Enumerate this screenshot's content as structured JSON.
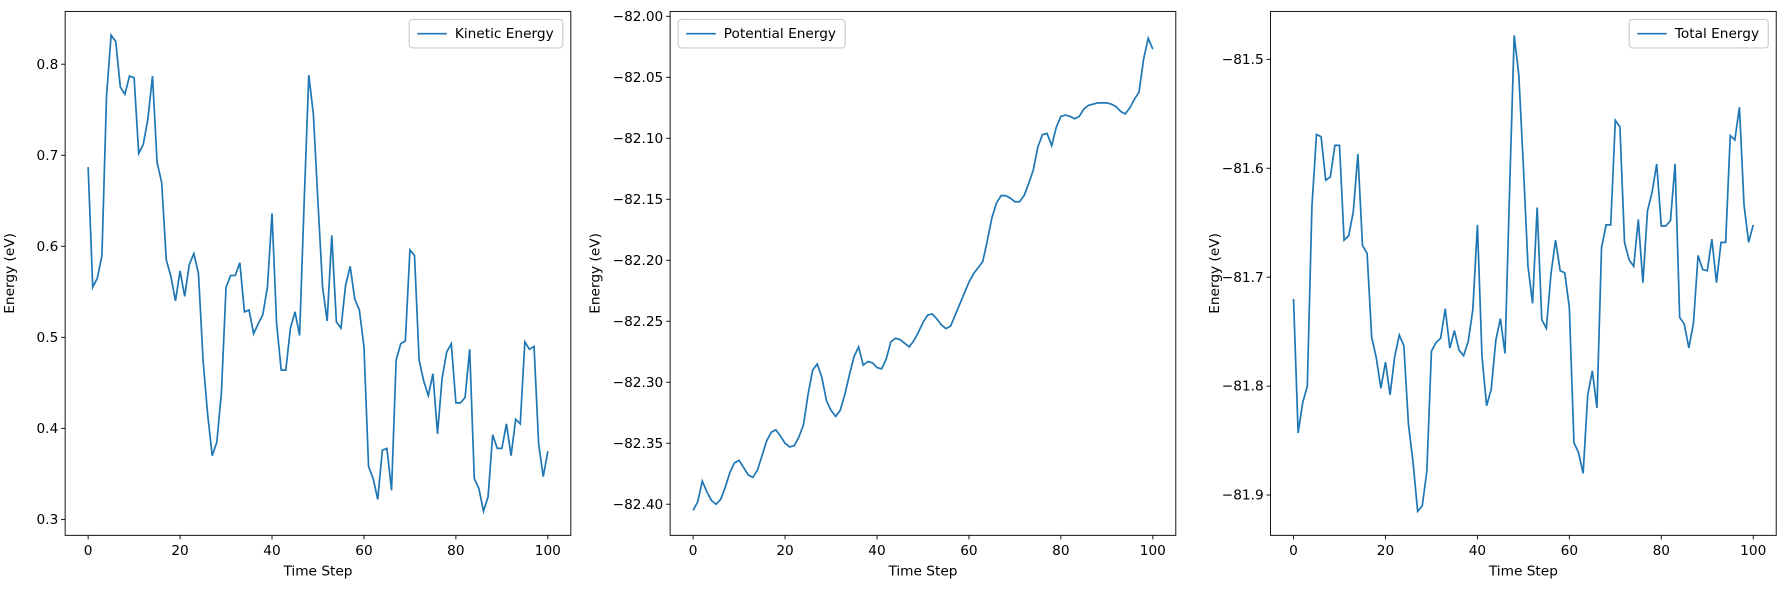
{
  "chart_data": [
    {
      "type": "line",
      "xlabel": "Time Step",
      "ylabel": "Energy (eV)",
      "legend": "upper right",
      "xlim": [
        -5,
        105
      ],
      "ylim": [
        0.2825,
        0.858
      ],
      "xticks": [
        0,
        20,
        40,
        60,
        80,
        100
      ],
      "yticks": [
        0.3,
        0.4,
        0.5,
        0.6,
        0.7,
        0.8
      ],
      "x": [
        0,
        1,
        2,
        3,
        4,
        5,
        6,
        7,
        8,
        9,
        10,
        11,
        12,
        13,
        14,
        15,
        16,
        17,
        18,
        19,
        20,
        21,
        22,
        23,
        24,
        25,
        26,
        27,
        28,
        29,
        30,
        31,
        32,
        33,
        34,
        35,
        36,
        37,
        38,
        39,
        40,
        41,
        42,
        43,
        44,
        45,
        46,
        47,
        48,
        49,
        50,
        51,
        52,
        53,
        54,
        55,
        56,
        57,
        58,
        59,
        60,
        61,
        62,
        63,
        64,
        65,
        66,
        67,
        68,
        69,
        70,
        71,
        72,
        73,
        74,
        75,
        76,
        77,
        78,
        79,
        80,
        81,
        82,
        83,
        84,
        85,
        86,
        87,
        88,
        89,
        90,
        91,
        92,
        93,
        94,
        95,
        96,
        97,
        98,
        99,
        100
      ],
      "series": [
        {
          "name": "Kinetic Energy",
          "color": "#1f77b4",
          "values": [
            0.687,
            0.555,
            0.565,
            0.59,
            0.765,
            0.832,
            0.825,
            0.775,
            0.767,
            0.787,
            0.785,
            0.702,
            0.712,
            0.74,
            0.787,
            0.692,
            0.67,
            0.585,
            0.567,
            0.54,
            0.573,
            0.545,
            0.58,
            0.592,
            0.57,
            0.475,
            0.415,
            0.37,
            0.385,
            0.44,
            0.555,
            0.568,
            0.568,
            0.582,
            0.528,
            0.53,
            0.504,
            0.515,
            0.525,
            0.555,
            0.636,
            0.515,
            0.464,
            0.464,
            0.51,
            0.528,
            0.502,
            0.65,
            0.788,
            0.745,
            0.648,
            0.555,
            0.518,
            0.612,
            0.517,
            0.51,
            0.557,
            0.578,
            0.542,
            0.53,
            0.49,
            0.358,
            0.345,
            0.322,
            0.376,
            0.378,
            0.332,
            0.475,
            0.493,
            0.496,
            0.596,
            0.59,
            0.475,
            0.452,
            0.436,
            0.46,
            0.394,
            0.455,
            0.484,
            0.493,
            0.428,
            0.428,
            0.434,
            0.487,
            0.345,
            0.334,
            0.309,
            0.325,
            0.393,
            0.378,
            0.378,
            0.405,
            0.37,
            0.41,
            0.405,
            0.495,
            0.487,
            0.49,
            0.383,
            0.347,
            0.375
          ]
        }
      ]
    },
    {
      "type": "line",
      "xlabel": "Time Step",
      "ylabel": "Energy (eV)",
      "legend": "upper left",
      "xlim": [
        -5,
        105
      ],
      "ylim": [
        -82.4255,
        -81.996
      ],
      "xticks": [
        0,
        20,
        40,
        60,
        80,
        100
      ],
      "yticks": [
        {
          "value": -82.4,
          "label": "−82.40"
        },
        {
          "value": -82.35,
          "label": "−82.35"
        },
        {
          "value": -82.3,
          "label": "−82.30"
        },
        {
          "value": -82.25,
          "label": "−82.25"
        },
        {
          "value": -82.2,
          "label": "−82.20"
        },
        {
          "value": -82.15,
          "label": "−82.15"
        },
        {
          "value": -82.1,
          "label": "−82.10"
        },
        {
          "value": -82.05,
          "label": "−82.05"
        },
        {
          "value": -82.0,
          "label": "−82.00"
        }
      ],
      "x": [
        0,
        1,
        2,
        3,
        4,
        5,
        6,
        7,
        8,
        9,
        10,
        11,
        12,
        13,
        14,
        15,
        16,
        17,
        18,
        19,
        20,
        21,
        22,
        23,
        24,
        25,
        26,
        27,
        28,
        29,
        30,
        31,
        32,
        33,
        34,
        35,
        36,
        37,
        38,
        39,
        40,
        41,
        42,
        43,
        44,
        45,
        46,
        47,
        48,
        49,
        50,
        51,
        52,
        53,
        54,
        55,
        56,
        57,
        58,
        59,
        60,
        61,
        62,
        63,
        64,
        65,
        66,
        67,
        68,
        69,
        70,
        71,
        72,
        73,
        74,
        75,
        76,
        77,
        78,
        79,
        80,
        81,
        82,
        83,
        84,
        85,
        86,
        87,
        88,
        89,
        90,
        91,
        92,
        93,
        94,
        95,
        96,
        97,
        98,
        99,
        100
      ],
      "series": [
        {
          "name": "Potential Energy",
          "color": "#1f77b4",
          "values": [
            -82.405,
            -82.398,
            -82.381,
            -82.39,
            -82.397,
            -82.4,
            -82.396,
            -82.386,
            -82.374,
            -82.366,
            -82.364,
            -82.37,
            -82.376,
            -82.378,
            -82.372,
            -82.36,
            -82.348,
            -82.341,
            -82.339,
            -82.344,
            -82.35,
            -82.353,
            -82.352,
            -82.345,
            -82.335,
            -82.31,
            -82.29,
            -82.285,
            -82.296,
            -82.315,
            -82.323,
            -82.328,
            -82.323,
            -82.31,
            -82.294,
            -82.279,
            -82.271,
            -82.286,
            -82.283,
            -82.284,
            -82.288,
            -82.289,
            -82.281,
            -82.267,
            -82.264,
            -82.265,
            -82.268,
            -82.271,
            -82.266,
            -82.259,
            -82.251,
            -82.245,
            -82.244,
            -82.248,
            -82.253,
            -82.256,
            -82.254,
            -82.245,
            -82.236,
            -82.227,
            -82.218,
            -82.211,
            -82.206,
            -82.201,
            -82.184,
            -82.165,
            -82.153,
            -82.147,
            -82.147,
            -82.149,
            -82.152,
            -82.152,
            -82.147,
            -82.137,
            -82.126,
            -82.107,
            -82.097,
            -82.096,
            -82.106,
            -82.091,
            -82.082,
            -82.081,
            -82.082,
            -82.084,
            -82.082,
            -82.076,
            -82.073,
            -82.072,
            -82.071,
            -82.071,
            -82.071,
            -82.072,
            -82.074,
            -82.078,
            -82.08,
            -82.075,
            -82.068,
            -82.062,
            -82.035,
            -82.018,
            -82.027
          ]
        }
      ]
    },
    {
      "type": "line",
      "xlabel": "Time Step",
      "ylabel": "Energy (eV)",
      "legend": "upper right",
      "xlim": [
        -5,
        105
      ],
      "ylim": [
        -81.937,
        -81.456
      ],
      "xticks": [
        0,
        20,
        40,
        60,
        80,
        100
      ],
      "yticks": [
        {
          "value": -81.9,
          "label": "−81.9"
        },
        {
          "value": -81.8,
          "label": "−81.8"
        },
        {
          "value": -81.7,
          "label": "−81.7"
        },
        {
          "value": -81.6,
          "label": "−81.6"
        },
        {
          "value": -81.5,
          "label": "−81.5"
        }
      ],
      "x": [
        0,
        1,
        2,
        3,
        4,
        5,
        6,
        7,
        8,
        9,
        10,
        11,
        12,
        13,
        14,
        15,
        16,
        17,
        18,
        19,
        20,
        21,
        22,
        23,
        24,
        25,
        26,
        27,
        28,
        29,
        30,
        31,
        32,
        33,
        34,
        35,
        36,
        37,
        38,
        39,
        40,
        41,
        42,
        43,
        44,
        45,
        46,
        47,
        48,
        49,
        50,
        51,
        52,
        53,
        54,
        55,
        56,
        57,
        58,
        59,
        60,
        61,
        62,
        63,
        64,
        65,
        66,
        67,
        68,
        69,
        70,
        71,
        72,
        73,
        74,
        75,
        76,
        77,
        78,
        79,
        80,
        81,
        82,
        83,
        84,
        85,
        86,
        87,
        88,
        89,
        90,
        91,
        92,
        93,
        94,
        95,
        96,
        97,
        98,
        99,
        100
      ],
      "series": [
        {
          "name": "Total Energy",
          "color": "#1f77b4",
          "values": [
            -81.72,
            -81.843,
            -81.815,
            -81.8,
            -81.635,
            -81.569,
            -81.571,
            -81.611,
            -81.608,
            -81.579,
            -81.579,
            -81.666,
            -81.662,
            -81.64,
            -81.587,
            -81.671,
            -81.678,
            -81.755,
            -81.774,
            -81.802,
            -81.778,
            -81.808,
            -81.773,
            -81.753,
            -81.763,
            -81.835,
            -81.87,
            -81.915,
            -81.91,
            -81.878,
            -81.768,
            -81.76,
            -81.756,
            -81.729,
            -81.765,
            -81.749,
            -81.767,
            -81.772,
            -81.759,
            -81.73,
            -81.652,
            -81.773,
            -81.818,
            -81.803,
            -81.758,
            -81.738,
            -81.77,
            -81.62,
            -81.478,
            -81.514,
            -81.598,
            -81.69,
            -81.724,
            -81.636,
            -81.739,
            -81.747,
            -81.697,
            -81.666,
            -81.694,
            -81.696,
            -81.728,
            -81.852,
            -81.861,
            -81.88,
            -81.808,
            -81.786,
            -81.82,
            -81.673,
            -81.652,
            -81.652,
            -81.556,
            -81.562,
            -81.668,
            -81.684,
            -81.69,
            -81.647,
            -81.705,
            -81.639,
            -81.622,
            -81.596,
            -81.653,
            -81.653,
            -81.648,
            -81.596,
            -81.737,
            -81.743,
            -81.765,
            -81.742,
            -81.68,
            -81.693,
            -81.694,
            -81.665,
            -81.705,
            -81.668,
            -81.668,
            -81.57,
            -81.574,
            -81.544,
            -81.634,
            -81.668,
            -81.652
          ]
        }
      ]
    }
  ]
}
